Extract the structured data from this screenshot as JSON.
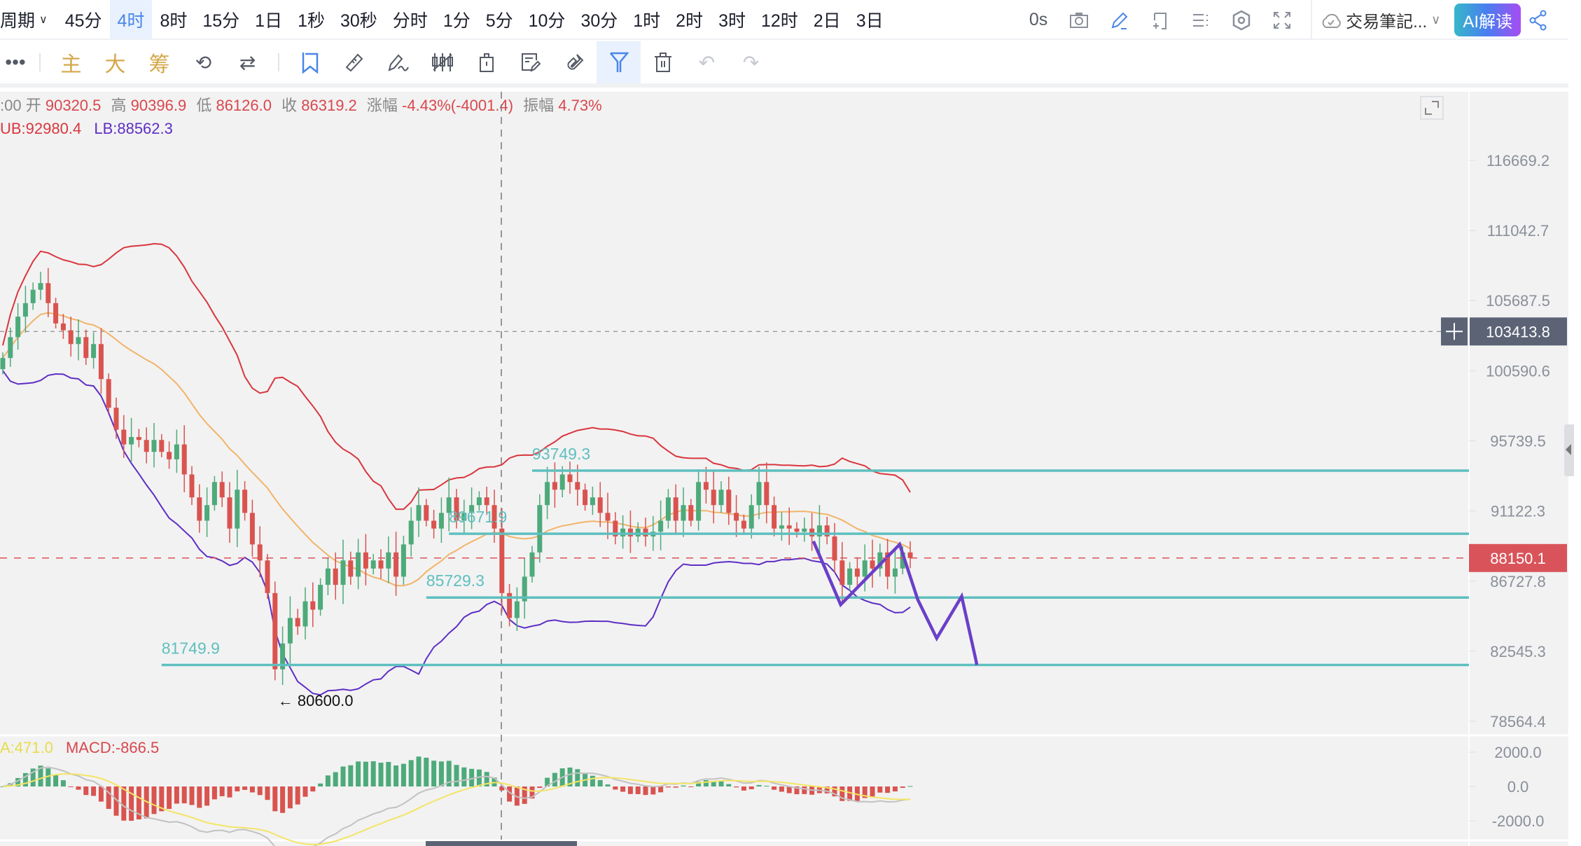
{
  "topbar": {
    "period_label": "周期",
    "tabs": [
      "45分",
      "4时",
      "8时",
      "15分",
      "1日",
      "1秒",
      "30秒",
      "分时",
      "1分",
      "5分",
      "10分",
      "30分",
      "1时",
      "2时",
      "3时",
      "12时",
      "2日",
      "3日"
    ],
    "active_tab": "4时",
    "countdown": "0s",
    "notes_label": "交易筆記...",
    "ai_button": "AI解读"
  },
  "toolbar": {
    "text_tools": [
      "主",
      "大",
      "筹"
    ]
  },
  "info": {
    "time": ":00",
    "open_label": "开",
    "open": "90320.5",
    "high_label": "高",
    "high": "90396.9",
    "low_label": "低",
    "low": "86126.0",
    "close_label": "收",
    "close": "86319.2",
    "change_label": "涨幅",
    "change": "-4.43%(-4001.4)",
    "amp_label": "振幅",
    "amp": "4.73%",
    "ub": "UB:92980.4",
    "lb": "LB:88562.3"
  },
  "macd": {
    "dea": "A:471.0",
    "macd": "MACD:-866.5"
  },
  "colors": {
    "up": "#4daa7a",
    "down": "#d9534f",
    "upper_band": "#d9363e",
    "lower_band": "#5e2ec4",
    "mid_band": "#f2b46a",
    "levels": "#5fbfbf",
    "drawing": "#6a3fc8",
    "dif": "#c2c2c2",
    "dea": "#f3e566",
    "last_price_bg": "#d9545a",
    "crosshair_bg": "#5b6375"
  },
  "chart_data": {
    "type": "candlestick",
    "scale": "log",
    "ylim": [
      78564.4,
      116669.2
    ],
    "y_ticks": [
      "116669.2",
      "111042.7",
      "105687.5",
      "100590.6",
      "95739.5",
      "91122.3",
      "86727.8",
      "82545.3",
      "78564.4"
    ],
    "macd_ticks": [
      "2000.0",
      "0.0",
      "-2000.0"
    ],
    "macd_ylim": [
      -2600,
      2600
    ],
    "closes": [
      101500,
      103000,
      104500,
      105500,
      106500,
      107000,
      105500,
      104000,
      103500,
      102500,
      103000,
      101500,
      102500,
      100000,
      98000,
      96500,
      95500,
      96000,
      95800,
      95000,
      95800,
      95000,
      94500,
      95500,
      93500,
      92000,
      90500,
      91500,
      93000,
      92000,
      90000,
      92500,
      91000,
      89000,
      88000,
      86000,
      81500,
      83000,
      84500,
      84000,
      85500,
      85000,
      86500,
      87500,
      86500,
      88000,
      87000,
      88500,
      87500,
      88000,
      87500,
      88500,
      87000,
      89000,
      90500,
      91500,
      90500,
      90000,
      91000,
      92000,
      90500,
      91000,
      91500,
      92000,
      91500,
      90000,
      86000,
      84500,
      85500,
      87000,
      88500,
      91500,
      93000,
      92500,
      93500,
      93000,
      92500,
      91500,
      92000,
      91000,
      90500,
      89500,
      90000,
      89500,
      90000,
      89500,
      89800,
      90500,
      92000,
      90500,
      91500,
      90500,
      93000,
      92500,
      91500,
      92500,
      91000,
      90500,
      90000,
      91500,
      93000,
      91500,
      90000,
      90200,
      90000,
      89800,
      90000,
      89500,
      90200,
      89500,
      88000,
      86500,
      87500,
      87000,
      88000,
      87500,
      88500,
      87000,
      87500,
      88500,
      88150
    ],
    "last_price": "88150.1",
    "crosshair_price": "103413.8",
    "levels": [
      {
        "label": "93749.3",
        "price": 93749.3,
        "from_index": 70
      },
      {
        "label": "89671.9",
        "price": 89671.9,
        "from_index": 59
      },
      {
        "label": "85729.3",
        "price": 85729.3,
        "from_index": 56
      },
      {
        "label": "81749.9",
        "price": 81749.9,
        "from_index": 21
      }
    ],
    "low_marker": {
      "label": "← 80600.0",
      "price": 80600.0,
      "index": 36
    },
    "drawing": [
      [
        107.2,
        89200
      ],
      [
        110.8,
        85300
      ],
      [
        118.6,
        89000
      ],
      [
        121,
        85600
      ],
      [
        123.5,
        83300
      ],
      [
        126.8,
        85800
      ],
      [
        128.7,
        82000
      ],
      [
        128.8,
        81750
      ]
    ]
  }
}
